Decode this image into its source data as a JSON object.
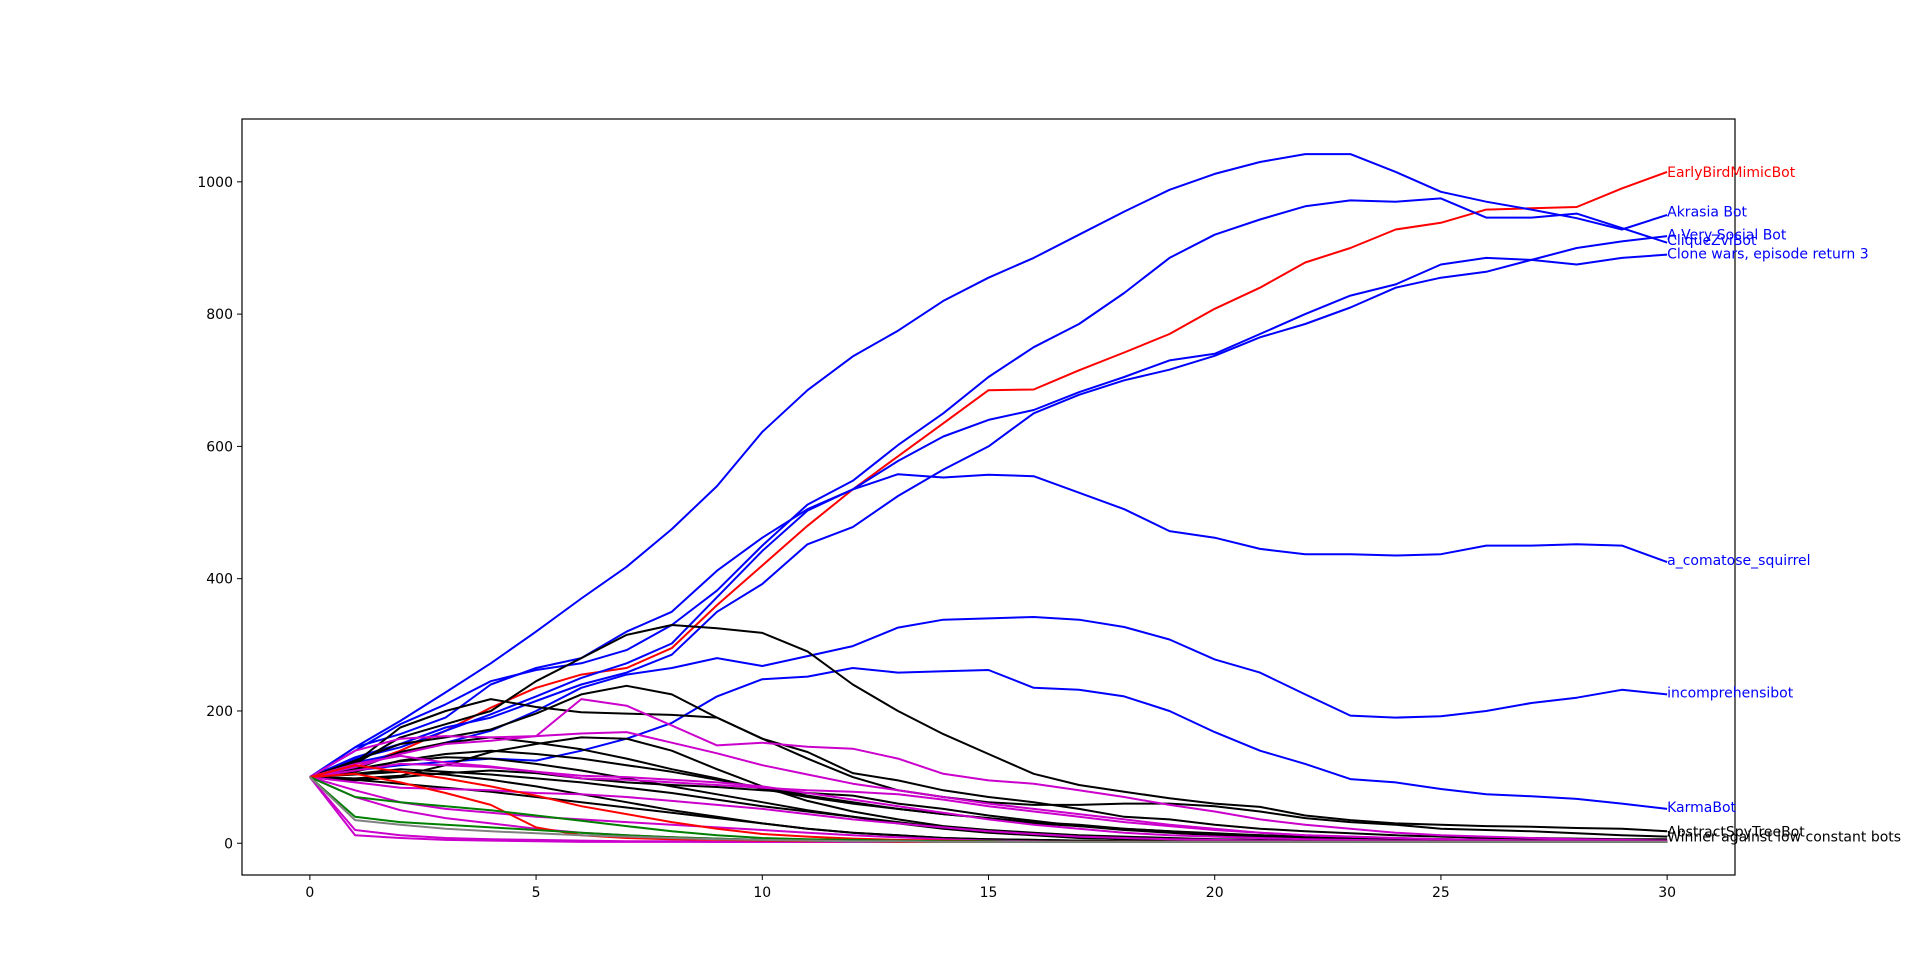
{
  "chart_data": {
    "type": "line",
    "title": "",
    "xlabel": "",
    "ylabel": "",
    "xlim": [
      -1.5,
      31.5
    ],
    "ylim": [
      -48,
      1095
    ],
    "xticks": [
      0,
      5,
      10,
      15,
      20,
      25,
      30
    ],
    "yticks": [
      0,
      200,
      400,
      600,
      800,
      1000
    ],
    "grid": false,
    "legend": "none",
    "x": [
      0,
      1,
      2,
      3,
      4,
      5,
      6,
      7,
      8,
      9,
      10,
      11,
      12,
      13,
      14,
      15,
      16,
      17,
      18,
      19,
      20,
      21,
      22,
      23,
      24,
      25,
      26,
      27,
      28,
      29,
      30
    ],
    "series": [
      {
        "name": "EarlyBirdMimicBot",
        "color": "#ff0000",
        "label_x": 30,
        "label_y": 1015,
        "values": [
          100,
          115,
          140,
          170,
          205,
          235,
          255,
          265,
          295,
          360,
          420,
          480,
          535,
          585,
          635,
          685,
          686,
          715,
          742,
          770,
          808,
          840,
          878,
          900,
          928,
          938,
          958,
          960,
          962,
          990,
          1015
        ]
      },
      {
        "name": "Akrasia Bot",
        "color": "#0000ff",
        "label_x": 30,
        "label_y": 955,
        "values": [
          100,
          145,
          185,
          228,
          272,
          320,
          370,
          418,
          475,
          540,
          622,
          685,
          736,
          775,
          820,
          855,
          885,
          920,
          955,
          988,
          1012,
          1030,
          1042,
          1042,
          1015,
          985,
          970,
          958,
          945,
          928,
          950
        ]
      },
      {
        "name": "A Very Social Bot",
        "color": "#0000ff",
        "label_x": 30,
        "label_y": 920,
        "values": [
          100,
          140,
          180,
          210,
          245,
          262,
          272,
          292,
          330,
          382,
          450,
          512,
          548,
          602,
          650,
          705,
          750,
          785,
          832,
          885,
          920,
          943,
          963,
          972,
          970,
          975,
          946,
          946,
          952,
          930,
          908
        ]
      },
      {
        "name": "CliqueZviBot",
        "color": "#0000ff",
        "label_x": 30,
        "label_y": 912,
        "values": [
          100,
          145,
          165,
          190,
          240,
          265,
          280,
          320,
          350,
          412,
          462,
          505,
          535,
          578,
          615,
          640,
          655,
          682,
          705,
          730,
          740,
          770,
          800,
          828,
          845,
          875,
          885,
          882,
          875,
          885,
          890
        ]
      },
      {
        "name": "Clone wars, episode return 3",
        "color": "#0000ff",
        "label_x": 30,
        "label_y": 892,
        "values": [
          100,
          130,
          150,
          175,
          190,
          215,
          240,
          258,
          285,
          350,
          392,
          452,
          478,
          525,
          565,
          600,
          650,
          678,
          700,
          716,
          737,
          765,
          785,
          810,
          840,
          855,
          864,
          882,
          900,
          910,
          918
        ]
      },
      {
        "name": "a_comatose_squirrel",
        "color": "#0000ff",
        "label_x": 30,
        "label_y": 428,
        "values": [
          100,
          128,
          145,
          170,
          195,
          222,
          250,
          272,
          302,
          372,
          442,
          503,
          535,
          558,
          553,
          557,
          555,
          530,
          505,
          472,
          462,
          445,
          437,
          437,
          435,
          437,
          450,
          450,
          452,
          450,
          425
        ]
      },
      {
        "name": "incomprehensibot",
        "color": "#0000ff",
        "label_x": 30,
        "label_y": 228,
        "values": [
          100,
          122,
          136,
          152,
          170,
          200,
          235,
          255,
          265,
          280,
          268,
          283,
          298,
          326,
          338,
          340,
          342,
          338,
          327,
          308,
          278,
          258,
          225,
          193,
          190,
          192,
          200,
          212,
          220,
          232,
          225
        ]
      },
      {
        "name": "KarmaBot",
        "color": "#0000ff",
        "label_x": 30,
        "label_y": 55,
        "values": [
          100,
          110,
          118,
          123,
          128,
          125,
          140,
          158,
          182,
          222,
          248,
          252,
          265,
          258,
          260,
          262,
          235,
          232,
          222,
          200,
          168,
          140,
          120,
          97,
          92,
          82,
          74,
          71,
          67,
          60,
          52
        ]
      },
      {
        "name": "AbstractSpyTreeBot",
        "color": "#000000",
        "label_x": 30,
        "label_y": 18,
        "values": [
          100,
          120,
          160,
          180,
          200,
          245,
          280,
          315,
          330,
          325,
          318,
          290,
          240,
          200,
          165,
          135,
          105,
          88,
          78,
          68,
          60,
          55,
          42,
          35,
          30,
          28,
          26,
          25,
          23,
          22,
          18
        ]
      },
      {
        "name": "Winner against low constant bots",
        "color": "#000000",
        "label_x": 30,
        "label_y": 10,
        "values": [
          100,
          125,
          150,
          160,
          172,
          196,
          225,
          238,
          225,
          190,
          158,
          128,
          100,
          80,
          70,
          62,
          58,
          58,
          60,
          60,
          56,
          48,
          38,
          32,
          28,
          22,
          20,
          18,
          15,
          12,
          10
        ]
      },
      {
        "name": "",
        "color": "#000000",
        "values": [
          100,
          122,
          175,
          200,
          218,
          206,
          198,
          196,
          194,
          190,
          158,
          138,
          106,
          95,
          80,
          70,
          62,
          52,
          40,
          36,
          28,
          22,
          18,
          15,
          12,
          10,
          8,
          8,
          7,
          6,
          6
        ]
      },
      {
        "name": "",
        "color": "#000000",
        "values": [
          100,
          112,
          138,
          152,
          160,
          152,
          142,
          128,
          112,
          98,
          82,
          70,
          60,
          52,
          44,
          38,
          32,
          28,
          22,
          18,
          14,
          12,
          10,
          8,
          7,
          6,
          5,
          5,
          5,
          4,
          4
        ]
      },
      {
        "name": "",
        "color": "#000000",
        "values": [
          100,
          108,
          125,
          135,
          140,
          135,
          128,
          118,
          108,
          96,
          84,
          72,
          62,
          52,
          44,
          38,
          30,
          26,
          22,
          18,
          15,
          12,
          10,
          8,
          7,
          6,
          5,
          4,
          4,
          3,
          3
        ]
      },
      {
        "name": "",
        "color": "#000000",
        "values": [
          100,
          98,
          102,
          118,
          138,
          150,
          160,
          158,
          140,
          112,
          86,
          64,
          48,
          36,
          26,
          20,
          16,
          12,
          10,
          8,
          6,
          5,
          4,
          3,
          3,
          2,
          2,
          2,
          2,
          2,
          2
        ]
      },
      {
        "name": "",
        "color": "#000000",
        "values": [
          100,
          95,
          100,
          106,
          110,
          106,
          98,
          92,
          88,
          85,
          80,
          76,
          72,
          60,
          52,
          42,
          34,
          26,
          20,
          16,
          12,
          10,
          8,
          6,
          5,
          4,
          3,
          3,
          3,
          2,
          2
        ]
      },
      {
        "name": "",
        "color": "#000000",
        "values": [
          100,
          105,
          112,
          108,
          104,
          98,
          92,
          84,
          76,
          66,
          56,
          48,
          40,
          32,
          24,
          18,
          14,
          10,
          8,
          6,
          5,
          4,
          3,
          3,
          2,
          2,
          2,
          2,
          2,
          2,
          2
        ]
      },
      {
        "name": "",
        "color": "#000000",
        "values": [
          100,
          96,
          90,
          84,
          78,
          70,
          62,
          54,
          46,
          38,
          30,
          22,
          16,
          12,
          8,
          6,
          5,
          4,
          3,
          3,
          2,
          2,
          2,
          2,
          2,
          2,
          2,
          2,
          2,
          2,
          2
        ]
      },
      {
        "name": "",
        "color": "#000000",
        "values": [
          100,
          104,
          108,
          104,
          96,
          86,
          74,
          62,
          50,
          40,
          30,
          22,
          16,
          12,
          8,
          6,
          5,
          4,
          3,
          3,
          2,
          2,
          2,
          2,
          2,
          2,
          2,
          2,
          2,
          2,
          2
        ]
      },
      {
        "name": "",
        "color": "#000000",
        "values": [
          100,
          112,
          124,
          130,
          128,
          120,
          110,
          98,
          86,
          74,
          62,
          50,
          40,
          30,
          22,
          16,
          12,
          8,
          6,
          5,
          4,
          3,
          3,
          2,
          2,
          2,
          2,
          2,
          2,
          2,
          2
        ]
      },
      {
        "name": "",
        "color": "#cc00cc",
        "values": [
          100,
          140,
          158,
          162,
          160,
          162,
          166,
          168,
          152,
          136,
          118,
          104,
          90,
          80,
          70,
          60,
          52,
          44,
          36,
          28,
          22,
          16,
          12,
          10,
          8,
          6,
          5,
          4,
          4,
          3,
          3
        ]
      },
      {
        "name": "",
        "color": "#cc00cc",
        "values": [
          100,
          115,
          135,
          150,
          155,
          162,
          218,
          208,
          178,
          148,
          152,
          146,
          143,
          128,
          105,
          95,
          90,
          80,
          70,
          58,
          48,
          36,
          28,
          22,
          16,
          12,
          10,
          8,
          6,
          5,
          4
        ]
      },
      {
        "name": "",
        "color": "#cc00cc",
        "values": [
          100,
          110,
          120,
          118,
          115,
          108,
          98,
          96,
          92,
          88,
          84,
          80,
          78,
          74,
          66,
          56,
          48,
          40,
          32,
          26,
          20,
          16,
          12,
          10,
          8,
          6,
          5,
          4,
          4,
          3,
          3
        ]
      },
      {
        "name": "",
        "color": "#cc00cc",
        "values": [
          100,
          120,
          132,
          122,
          116,
          108,
          102,
          100,
          96,
          92,
          86,
          76,
          66,
          56,
          46,
          36,
          28,
          22,
          16,
          12,
          10,
          8,
          6,
          5,
          4,
          3,
          3,
          2,
          2,
          2,
          2
        ]
      },
      {
        "name": "",
        "color": "#cc00cc",
        "values": [
          100,
          92,
          84,
          82,
          80,
          76,
          74,
          70,
          64,
          58,
          52,
          44,
          36,
          30,
          24,
          18,
          14,
          10,
          8,
          6,
          5,
          4,
          3,
          3,
          2,
          2,
          2,
          2,
          2,
          2,
          2
        ]
      },
      {
        "name": "",
        "color": "#cc00cc",
        "values": [
          100,
          80,
          62,
          52,
          46,
          40,
          36,
          32,
          28,
          24,
          20,
          16,
          12,
          9,
          6,
          4,
          3,
          2,
          2,
          2,
          2,
          2,
          2,
          2,
          2,
          2,
          2,
          2,
          2,
          2,
          2
        ]
      },
      {
        "name": "",
        "color": "#cc00cc",
        "values": [
          100,
          70,
          50,
          38,
          30,
          22,
          16,
          12,
          9,
          7,
          5,
          4,
          3,
          2,
          2,
          2,
          2,
          2,
          2,
          2,
          2,
          2,
          2,
          2,
          2,
          2,
          2,
          2,
          2,
          2,
          2
        ]
      },
      {
        "name": "",
        "color": "#cc00cc",
        "values": [
          100,
          20,
          12,
          8,
          6,
          5,
          4,
          3,
          3,
          2,
          2,
          2,
          2,
          2,
          2,
          2,
          2,
          2,
          2,
          2,
          2,
          2,
          2,
          2,
          2,
          2,
          2,
          2,
          2,
          2,
          2
        ]
      },
      {
        "name": "",
        "color": "#cc00cc",
        "values": [
          100,
          12,
          8,
          5,
          4,
          3,
          2,
          2,
          2,
          2,
          2,
          2,
          2,
          2,
          2,
          2,
          2,
          2,
          2,
          2,
          2,
          2,
          2,
          2,
          2,
          2,
          2,
          2,
          2,
          2,
          2
        ]
      },
      {
        "name": "",
        "color": "#ff0000",
        "values": [
          100,
          118,
          108,
          98,
          86,
          72,
          56,
          44,
          32,
          22,
          14,
          10,
          7,
          5,
          4,
          3,
          2,
          2,
          2,
          2,
          2,
          2,
          2,
          2,
          2,
          2,
          2,
          2,
          2,
          2,
          2
        ]
      },
      {
        "name": "",
        "color": "#ff0000",
        "values": [
          100,
          105,
          92,
          76,
          58,
          24,
          12,
          8,
          6,
          5,
          4,
          3,
          3,
          2,
          2,
          2,
          2,
          2,
          2,
          2,
          2,
          2,
          2,
          2,
          2,
          2,
          2,
          2,
          2,
          2,
          2
        ]
      },
      {
        "name": "",
        "color": "#008000",
        "values": [
          100,
          70,
          62,
          56,
          50,
          42,
          34,
          26,
          18,
          12,
          8,
          6,
          5,
          4,
          3,
          3,
          2,
          2,
          2,
          2,
          2,
          2,
          2,
          2,
          2,
          2,
          2,
          2,
          2,
          2,
          2
        ]
      },
      {
        "name": "",
        "color": "#008000",
        "values": [
          100,
          40,
          32,
          28,
          24,
          20,
          16,
          12,
          9,
          7,
          5,
          4,
          3,
          3,
          2,
          2,
          2,
          2,
          2,
          2,
          2,
          2,
          2,
          2,
          2,
          2,
          2,
          2,
          2,
          2,
          2
        ]
      },
      {
        "name": "",
        "color": "#808080",
        "values": [
          100,
          35,
          28,
          22,
          18,
          15,
          12,
          10,
          8,
          6,
          5,
          4,
          3,
          3,
          2,
          2,
          2,
          2,
          2,
          2,
          2,
          2,
          2,
          2,
          2,
          2,
          2,
          2,
          2,
          2,
          2
        ]
      }
    ]
  }
}
